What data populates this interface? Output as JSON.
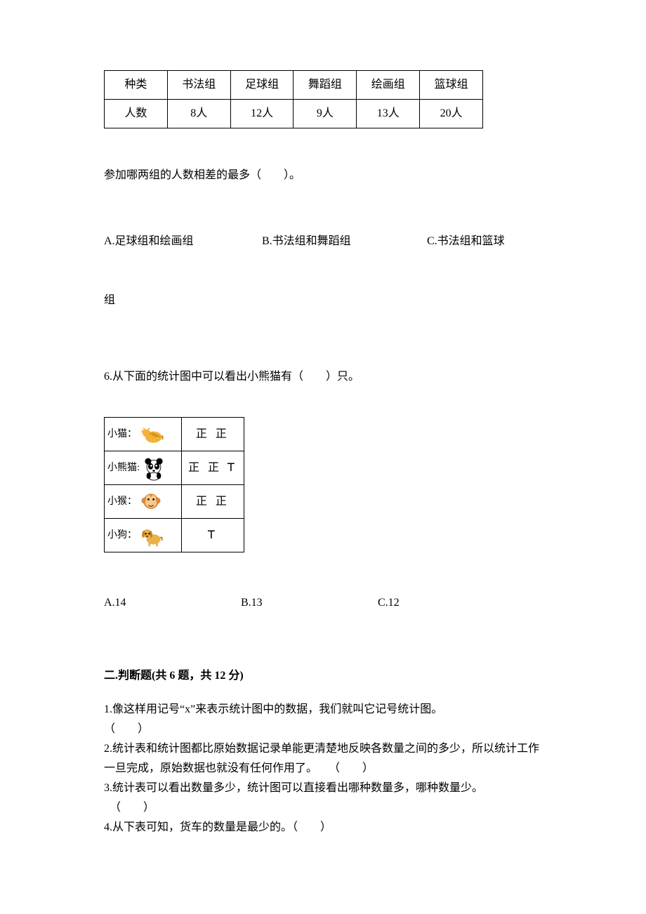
{
  "groups_table": {
    "columns": [
      "种类",
      "书法组",
      "足球组",
      "舞蹈组",
      "绘画组",
      "篮球组"
    ],
    "row_label": "人数",
    "row_values": [
      "8人",
      "12人",
      "9人",
      "13人",
      "20人"
    ],
    "border_color": "#000000",
    "cell_bg": "#ffffff",
    "font_size": 16
  },
  "q5": {
    "prompt": "参加哪两组的人数相差的最多（　　）。",
    "options": {
      "A": "A.足球组和绘画组",
      "B": "B.书法组和舞蹈组",
      "C_part1": "C.书法组和篮球",
      "C_part2": "组"
    }
  },
  "q6": {
    "prompt": "6.从下面的统计图中可以看出小熊猫有（　　）只。",
    "animals": [
      {
        "name": "小猫：",
        "icon": "cat",
        "tally": "正 正"
      },
      {
        "name": "小熊猫:",
        "icon": "panda",
        "tally": "正 正 𝖳"
      },
      {
        "name": "小猴：",
        "icon": "monkey",
        "tally": "正 正"
      },
      {
        "name": "小狗：",
        "icon": "dog",
        "tally": "𝖳"
      }
    ],
    "icon_colors": {
      "cat": {
        "body": "#f2b23a",
        "stripe": "#c9821a"
      },
      "panda": {
        "body": "#ffffff",
        "dark": "#000000"
      },
      "monkey": {
        "body": "#d88b3c",
        "face": "#f6c98a"
      },
      "dog": {
        "body": "#eab24a",
        "ear": "#c9821a"
      }
    },
    "options": {
      "A": "A.14",
      "B": "B.13",
      "C": "C.12"
    }
  },
  "section2": {
    "header": "二.判断题(共 6 题，共 12 分)",
    "items": [
      "1.像这样用记号“x”来表示统计图中的数据，我们就叫它记号统计图。\n（　　）",
      "2.统计表和统计图都比原始数据记录单能更清楚地反映各数量之间的多少，所以统计工作一旦完成，原始数据也就没有任何作用了。　　（　　）",
      "3.统计表可以看出数量多少，统计图可以直接看出哪种数量多，哪种数量少。\n　（　　）",
      "4.从下表可知，货车的数量是最少的。（　　）"
    ]
  },
  "styles": {
    "background_color": "#ffffff",
    "text_color": "#000000",
    "base_font_size": 16
  }
}
